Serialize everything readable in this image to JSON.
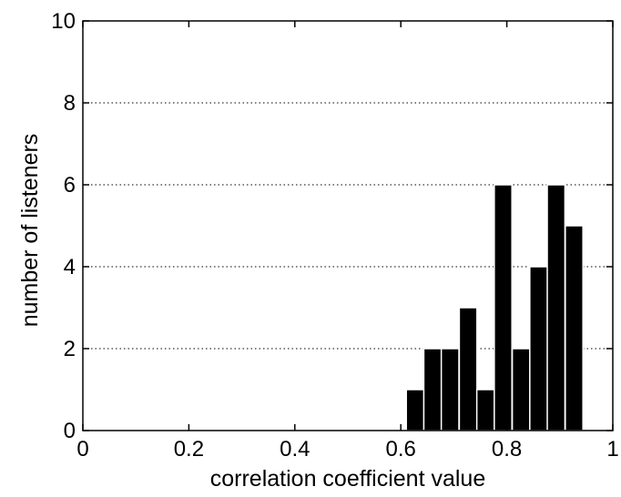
{
  "chart_data": {
    "type": "bar",
    "title": "",
    "xlabel": "correlation coefficient value",
    "ylabel": "number of listeners",
    "xlim": [
      0,
      1
    ],
    "ylim": [
      0,
      10
    ],
    "xticks": [
      "0",
      "0.2",
      "0.4",
      "0.6",
      "0.8",
      "1"
    ],
    "yticks": [
      "0",
      "2",
      "4",
      "6",
      "8",
      "10"
    ],
    "bin_width": 0.0333,
    "bins": [
      {
        "x": 0.627,
        "value": 1
      },
      {
        "x": 0.66,
        "value": 2
      },
      {
        "x": 0.693,
        "value": 2
      },
      {
        "x": 0.727,
        "value": 3
      },
      {
        "x": 0.76,
        "value": 1
      },
      {
        "x": 0.793,
        "value": 6
      },
      {
        "x": 0.827,
        "value": 2
      },
      {
        "x": 0.86,
        "value": 4
      },
      {
        "x": 0.893,
        "value": 6
      },
      {
        "x": 0.927,
        "value": 5
      }
    ],
    "bar_color": "#000000",
    "bar_edge_color": "#ffffff",
    "grid": "horizontal dotted"
  }
}
